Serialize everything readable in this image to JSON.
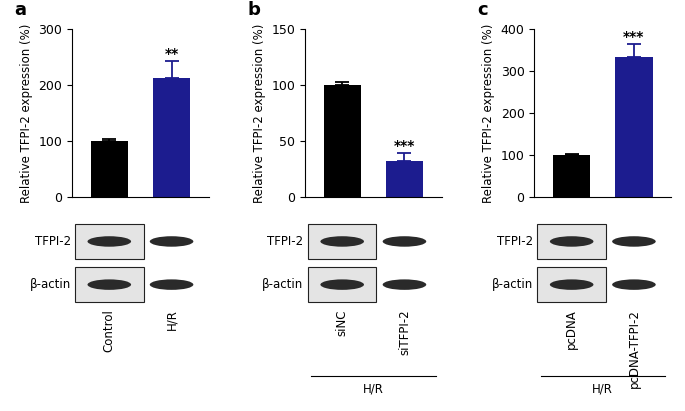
{
  "chart_data": [
    {
      "type": "bar",
      "title": "a",
      "y_label": "Relative TFPI-2 expression (%)",
      "categories": [
        "Control",
        "H/R"
      ],
      "values": [
        100,
        213
      ],
      "errors": [
        3,
        30
      ],
      "significance": [
        null,
        "**"
      ],
      "colors": [
        "#000000",
        "#1c1c8f"
      ],
      "ylim": [
        0,
        300
      ],
      "yticks": [
        0,
        100,
        200,
        300
      ],
      "blot_labels": [
        "TFPI-2",
        "β-actin"
      ]
    },
    {
      "type": "bar",
      "title": "b",
      "y_label": "Relative TFPI-2 expression (%)",
      "categories": [
        "siNC",
        "siTFPI-2"
      ],
      "values": [
        100,
        32
      ],
      "errors": [
        3,
        7
      ],
      "significance": [
        null,
        "***"
      ],
      "colors": [
        "#000000",
        "#1c1c8f"
      ],
      "ylim": [
        0,
        150
      ],
      "yticks": [
        0,
        50,
        100,
        150
      ],
      "blot_labels": [
        "TFPI-2",
        "β-actin"
      ],
      "group_label": "H/R"
    },
    {
      "type": "bar",
      "title": "c",
      "y_label": "Relative TFPI-2 expression (%)",
      "categories": [
        "pcDNA",
        "pcDNA-TFPI-2"
      ],
      "values": [
        100,
        333
      ],
      "errors": [
        3,
        32
      ],
      "significance": [
        null,
        "***"
      ],
      "colors": [
        "#000000",
        "#1c1c8f"
      ],
      "ylim": [
        0,
        400
      ],
      "yticks": [
        0,
        100,
        200,
        300,
        400
      ],
      "blot_labels": [
        "TFPI-2",
        "β-actin"
      ],
      "group_label": "H/R"
    }
  ]
}
